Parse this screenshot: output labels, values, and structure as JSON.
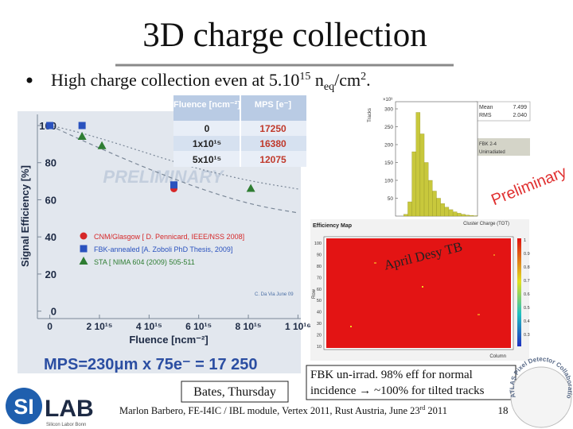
{
  "title": "3D charge collection",
  "bullet": {
    "text": "High charge collection even at 5.10",
    "exp1": "15",
    "n": " n",
    "sub": "eq",
    "unit": "/cm",
    "exp2": "2",
    "end": "."
  },
  "table": {
    "header": [
      "Fluence [ncm⁻²]",
      "MPS [e⁻]"
    ],
    "rows": [
      [
        "0",
        "17250"
      ],
      [
        "1x10¹⁵",
        "16380"
      ],
      [
        "5x10¹⁵",
        "12075"
      ]
    ]
  },
  "chart_data": [
    {
      "type": "scatter",
      "ylabel": "Signal Efficiency [%]",
      "xlabel": "Fluence [ncm⁻²]",
      "xlim": [
        -500000000000000,
        10500000000000000
      ],
      "ylim": [
        -4,
        106
      ],
      "xticks": [
        0,
        {
          "value": 2000000000000000,
          "label": "2 10¹⁵"
        },
        {
          "value": 4000000000000000,
          "label": "4 10¹⁵"
        },
        {
          "value": 6000000000000000,
          "label": "6 10¹⁵"
        },
        {
          "value": 8000000000000000,
          "label": "8 10¹⁵"
        },
        {
          "value": 10000000000000000,
          "label": "1 10¹⁶"
        }
      ],
      "yticks": [
        0,
        20,
        40,
        60,
        80,
        100
      ],
      "series": [
        {
          "name": "CNM/Glasgow [ D. Pennicard, IEEE/NSS 2008]",
          "color": "#d62728",
          "marker": "circle",
          "x": [
            0,
            5000000000000000
          ],
          "values": [
            100,
            66
          ]
        },
        {
          "name": "FBK-annealed [A. Zoboli PhD Thesis, 2009]",
          "color": "#2a52be",
          "marker": "square",
          "x": [
            0,
            1300000000000000,
            5000000000000000
          ],
          "values": [
            100,
            100,
            68
          ]
        },
        {
          "name": "STA [ NIMA 604 (2009) 505-511",
          "color": "#2e7d32",
          "marker": "triangle",
          "x": [
            1300000000000000,
            2100000000000000,
            8100000000000000
          ],
          "values": [
            94,
            89,
            66
          ]
        }
      ]
    },
    {
      "type": "histogram",
      "ylabel": "Tracks",
      "xlabel": "Cluster Charge (TOT)",
      "multiplier": "×10³",
      "color": "#c8c83c",
      "bins": [
        0,
        1,
        2,
        3,
        4,
        5,
        6,
        7,
        8,
        9,
        10,
        11,
        12,
        13,
        14,
        15,
        16,
        17,
        18,
        19,
        20
      ],
      "values": [
        0,
        0,
        5,
        40,
        180,
        290,
        230,
        150,
        100,
        70,
        50,
        35,
        25,
        18,
        12,
        8,
        5,
        3,
        2,
        1
      ],
      "xlim": [
        0,
        20
      ],
      "ylim": [
        0,
        320
      ],
      "yticks": [
        50,
        100,
        150,
        200,
        250,
        300
      ],
      "legend": [
        "FBK 2-4",
        "Unirradiated"
      ],
      "stats": {
        "labels": [
          "Mean",
          "RMS"
        ],
        "values": [
          "7.499",
          "2.040"
        ]
      }
    }
  ],
  "efficiency_map": {
    "title": "Efficiency Map",
    "ylabel": "Row",
    "xlabel": "Column",
    "yticks": [
      "100",
      "90",
      "80",
      "70",
      "60",
      "50",
      "40",
      "30",
      "20",
      "10"
    ],
    "colorbar_ticks": [
      "1",
      "0.9",
      "0.8",
      "0.7",
      "0.6",
      "0.5",
      "0.4",
      "0.3"
    ]
  },
  "annotations": {
    "preliminary_left": "PRELIMINARY",
    "preliminary_right": "Preliminary",
    "testbeam": "April Desy TB",
    "credit": "C. Da Via June 09",
    "mps_formula": "MPS=230μm x 75e⁻ = 17 250",
    "talk_ref": "Bates, Thursday",
    "conclusion": [
      "FBK un-irrad. 98% eff for normal",
      "incidence → ~100% for tilted tracks"
    ]
  },
  "footer": {
    "text": "Marlon Barbero, FE-I4IC / IBL module, Vertex 2011, Rust Austria, June 23",
    "sup": "rd",
    "year": " 2011",
    "page": "18"
  },
  "logos": {
    "silab_si": "SI",
    "silab_lab": "LAB",
    "silab_sub": "Silicon Labor Bonn",
    "atlas": "ATLAS Pixel Detector Collaboration"
  }
}
